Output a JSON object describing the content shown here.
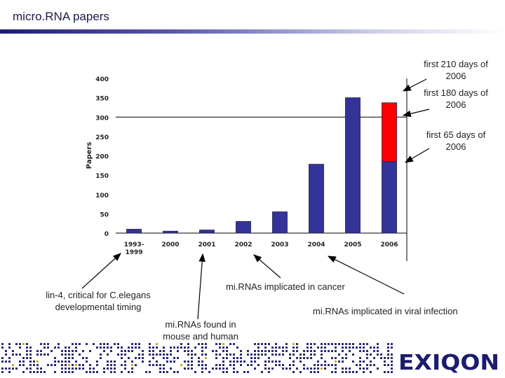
{
  "slide": {
    "title": "micro.RNA papers",
    "brand": "EXIQON"
  },
  "annotations": {
    "bar_2006_top": "first 210 days of 2006",
    "bar_2006_mid": "first 180 days of 2006",
    "bar_2006_low": "first 65 days of 2006",
    "lin4_line1": "lin-4, critical for C.elegans",
    "lin4_line2": "developmental timing",
    "mouse_human_line1": "mi.RNAs found in",
    "mouse_human_line2": "mouse and human",
    "cancer": "mi.RNAs implicated in cancer",
    "viral": "mi.RNAs implicated in viral infection"
  },
  "chart_data": {
    "type": "bar",
    "categories": [
      "1993-1999",
      "2000",
      "2001",
      "2002",
      "2003",
      "2004",
      "2005",
      "2006"
    ],
    "series": [
      {
        "values": [
          10,
          5,
          8,
          30,
          55,
          178,
          350,
          185
        ],
        "color": "#333399"
      },
      {
        "values": [
          0,
          0,
          0,
          0,
          0,
          0,
          0,
          152
        ],
        "color": "#ff0000"
      }
    ],
    "ylabel": "Papers",
    "ylim": [
      0,
      400
    ],
    "yticks": [
      0,
      50,
      100,
      150,
      200,
      250,
      300,
      350,
      400
    ],
    "grid": false,
    "legend": "none"
  }
}
